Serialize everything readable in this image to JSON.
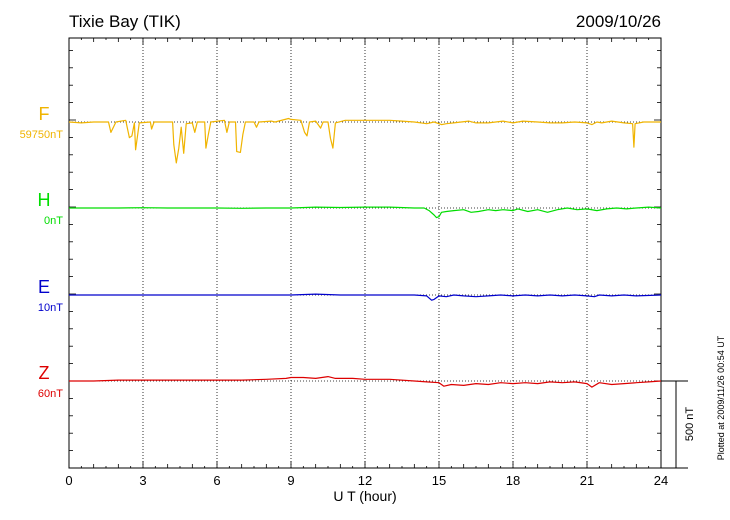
{
  "header": {
    "title": "Tixie Bay (TIK)",
    "date": "2009/10/26"
  },
  "side_note": "Plotted at 2009/11/26 00:54 UT",
  "scale_bar": {
    "label": "500 nT",
    "value": 500
  },
  "chart_data": {
    "type": "line",
    "xlabel": "U T (hour)",
    "xlim": [
      0,
      24
    ],
    "xticks": [
      0,
      3,
      6,
      9,
      12,
      15,
      18,
      21,
      24
    ],
    "xtick_labels": [
      "0",
      "3",
      "6",
      "9",
      "12",
      "15",
      "18",
      "21",
      "24"
    ],
    "grid": "vertical dotted at every 3 hours; dotted baseline per trace",
    "colors": {
      "F": "#f0b400",
      "H": "#00dd00",
      "E": "#0000cc",
      "Z": "#dd0000"
    },
    "series": [
      {
        "name": "F",
        "baseline_label": "59750nT",
        "baseline_nT": 59750,
        "points": [
          [
            0,
            0
          ],
          [
            0.5,
            -5
          ],
          [
            1.0,
            0
          ],
          [
            1.6,
            0
          ],
          [
            1.7,
            -60
          ],
          [
            1.8,
            -30
          ],
          [
            1.9,
            0
          ],
          [
            2.3,
            10
          ],
          [
            2.45,
            -90
          ],
          [
            2.55,
            -80
          ],
          [
            2.65,
            -5
          ],
          [
            2.7,
            -160
          ],
          [
            2.85,
            -5
          ],
          [
            3.3,
            0
          ],
          [
            3.35,
            -40
          ],
          [
            3.45,
            0
          ],
          [
            4.2,
            0
          ],
          [
            4.25,
            -130
          ],
          [
            4.35,
            -235
          ],
          [
            4.45,
            -150
          ],
          [
            4.55,
            -30
          ],
          [
            4.65,
            -180
          ],
          [
            4.75,
            -10
          ],
          [
            5.0,
            -5
          ],
          [
            5.1,
            -60
          ],
          [
            5.2,
            0
          ],
          [
            5.5,
            0
          ],
          [
            5.55,
            -150
          ],
          [
            5.65,
            -70
          ],
          [
            5.75,
            0
          ],
          [
            6.3,
            10
          ],
          [
            6.4,
            -60
          ],
          [
            6.5,
            0
          ],
          [
            6.75,
            0
          ],
          [
            6.8,
            -170
          ],
          [
            6.95,
            -175
          ],
          [
            7.05,
            -70
          ],
          [
            7.15,
            0
          ],
          [
            7.5,
            0
          ],
          [
            7.6,
            -30
          ],
          [
            7.7,
            0
          ],
          [
            8.2,
            5
          ],
          [
            8.35,
            0
          ],
          [
            8.9,
            20
          ],
          [
            9.0,
            15
          ],
          [
            9.4,
            10
          ],
          [
            9.55,
            -60
          ],
          [
            9.65,
            -80
          ],
          [
            9.75,
            0
          ],
          [
            10.0,
            5
          ],
          [
            10.2,
            -35
          ],
          [
            10.3,
            0
          ],
          [
            10.5,
            0
          ],
          [
            10.6,
            -95
          ],
          [
            10.7,
            -150
          ],
          [
            10.8,
            -5
          ],
          [
            11.2,
            10
          ],
          [
            12.0,
            10
          ],
          [
            13.0,
            10
          ],
          [
            13.5,
            5
          ],
          [
            14.0,
            0
          ],
          [
            14.5,
            -10
          ],
          [
            14.8,
            0
          ],
          [
            15.1,
            -15
          ],
          [
            15.3,
            -10
          ],
          [
            15.6,
            -5
          ],
          [
            16.2,
            5
          ],
          [
            16.5,
            -5
          ],
          [
            17.0,
            -5
          ],
          [
            17.6,
            5
          ],
          [
            18.0,
            -5
          ],
          [
            18.4,
            5
          ],
          [
            19.0,
            0
          ],
          [
            19.5,
            -5
          ],
          [
            20.0,
            -5
          ],
          [
            20.5,
            0
          ],
          [
            21.0,
            -5
          ],
          [
            21.2,
            -15
          ],
          [
            21.4,
            0
          ],
          [
            21.6,
            -5
          ],
          [
            22.0,
            5
          ],
          [
            22.5,
            -5
          ],
          [
            22.85,
            -10
          ],
          [
            22.9,
            -145
          ],
          [
            22.95,
            -10
          ],
          [
            23.3,
            0
          ],
          [
            24,
            0
          ]
        ]
      },
      {
        "name": "H",
        "baseline_label": "0nT",
        "baseline_nT": 0,
        "points": [
          [
            0,
            0
          ],
          [
            1,
            0
          ],
          [
            2,
            0
          ],
          [
            3,
            2
          ],
          [
            4,
            0
          ],
          [
            5,
            0
          ],
          [
            6,
            0
          ],
          [
            7,
            -2
          ],
          [
            8,
            0
          ],
          [
            9,
            0
          ],
          [
            10,
            5
          ],
          [
            11,
            3
          ],
          [
            12,
            5
          ],
          [
            13,
            5
          ],
          [
            14,
            0
          ],
          [
            14.4,
            0
          ],
          [
            14.6,
            -15
          ],
          [
            14.8,
            -40
          ],
          [
            14.9,
            -55
          ],
          [
            15.0,
            -50
          ],
          [
            15.1,
            -25
          ],
          [
            15.3,
            -20
          ],
          [
            15.6,
            -15
          ],
          [
            16.0,
            -10
          ],
          [
            16.3,
            -25
          ],
          [
            16.6,
            -20
          ],
          [
            17.0,
            -10
          ],
          [
            17.3,
            -15
          ],
          [
            17.6,
            -10
          ],
          [
            18.0,
            -15
          ],
          [
            18.2,
            -5
          ],
          [
            18.6,
            -20
          ],
          [
            19.0,
            -10
          ],
          [
            19.4,
            -25
          ],
          [
            19.8,
            -10
          ],
          [
            20.2,
            0
          ],
          [
            20.6,
            -10
          ],
          [
            21.0,
            -5
          ],
          [
            21.4,
            -15
          ],
          [
            21.8,
            -5
          ],
          [
            22.2,
            0
          ],
          [
            22.6,
            -5
          ],
          [
            23.0,
            0
          ],
          [
            23.5,
            5
          ],
          [
            24,
            0
          ]
        ]
      },
      {
        "name": "E",
        "baseline_label": "10nT",
        "baseline_nT": 10,
        "points": [
          [
            0,
            0
          ],
          [
            1,
            0
          ],
          [
            2,
            0
          ],
          [
            3,
            0
          ],
          [
            4,
            0
          ],
          [
            5,
            0
          ],
          [
            6,
            0
          ],
          [
            7,
            0
          ],
          [
            8,
            0
          ],
          [
            9,
            0
          ],
          [
            10,
            5
          ],
          [
            11,
            0
          ],
          [
            12,
            0
          ],
          [
            13,
            0
          ],
          [
            14,
            0
          ],
          [
            14.5,
            -5
          ],
          [
            14.7,
            -30
          ],
          [
            14.8,
            -25
          ],
          [
            15.0,
            -5
          ],
          [
            15.3,
            -10
          ],
          [
            15.6,
            0
          ],
          [
            16.0,
            -5
          ],
          [
            16.5,
            -10
          ],
          [
            17.0,
            -5
          ],
          [
            17.5,
            0
          ],
          [
            18.0,
            -5
          ],
          [
            18.5,
            0
          ],
          [
            19.0,
            -5
          ],
          [
            19.5,
            0
          ],
          [
            20.0,
            -5
          ],
          [
            20.5,
            0
          ],
          [
            21.0,
            -5
          ],
          [
            21.3,
            -10
          ],
          [
            21.5,
            0
          ],
          [
            22.0,
            -5
          ],
          [
            22.5,
            0
          ],
          [
            23.0,
            -5
          ],
          [
            24,
            0
          ]
        ]
      },
      {
        "name": "Z",
        "baseline_label": "60nT",
        "baseline_nT": 60,
        "points": [
          [
            0,
            0
          ],
          [
            1,
            0
          ],
          [
            2,
            5
          ],
          [
            3,
            5
          ],
          [
            4,
            5
          ],
          [
            5,
            5
          ],
          [
            6,
            5
          ],
          [
            7,
            5
          ],
          [
            8,
            10
          ],
          [
            8.8,
            15
          ],
          [
            9.0,
            20
          ],
          [
            9.5,
            20
          ],
          [
            10.0,
            15
          ],
          [
            10.5,
            25
          ],
          [
            10.8,
            15
          ],
          [
            11.5,
            15
          ],
          [
            12.0,
            10
          ],
          [
            13.0,
            10
          ],
          [
            14.0,
            0
          ],
          [
            14.5,
            -5
          ],
          [
            15.0,
            -10
          ],
          [
            15.2,
            -30
          ],
          [
            15.5,
            -20
          ],
          [
            16.0,
            -25
          ],
          [
            16.5,
            -15
          ],
          [
            17.0,
            -20
          ],
          [
            17.5,
            -10
          ],
          [
            18.0,
            -15
          ],
          [
            18.5,
            -10
          ],
          [
            19.0,
            -15
          ],
          [
            19.5,
            -5
          ],
          [
            20.0,
            -10
          ],
          [
            20.5,
            -5
          ],
          [
            21.0,
            -15
          ],
          [
            21.2,
            -35
          ],
          [
            21.5,
            -10
          ],
          [
            22.0,
            -20
          ],
          [
            22.5,
            -15
          ],
          [
            23.0,
            -10
          ],
          [
            23.5,
            -5
          ],
          [
            24,
            0
          ]
        ]
      }
    ]
  }
}
